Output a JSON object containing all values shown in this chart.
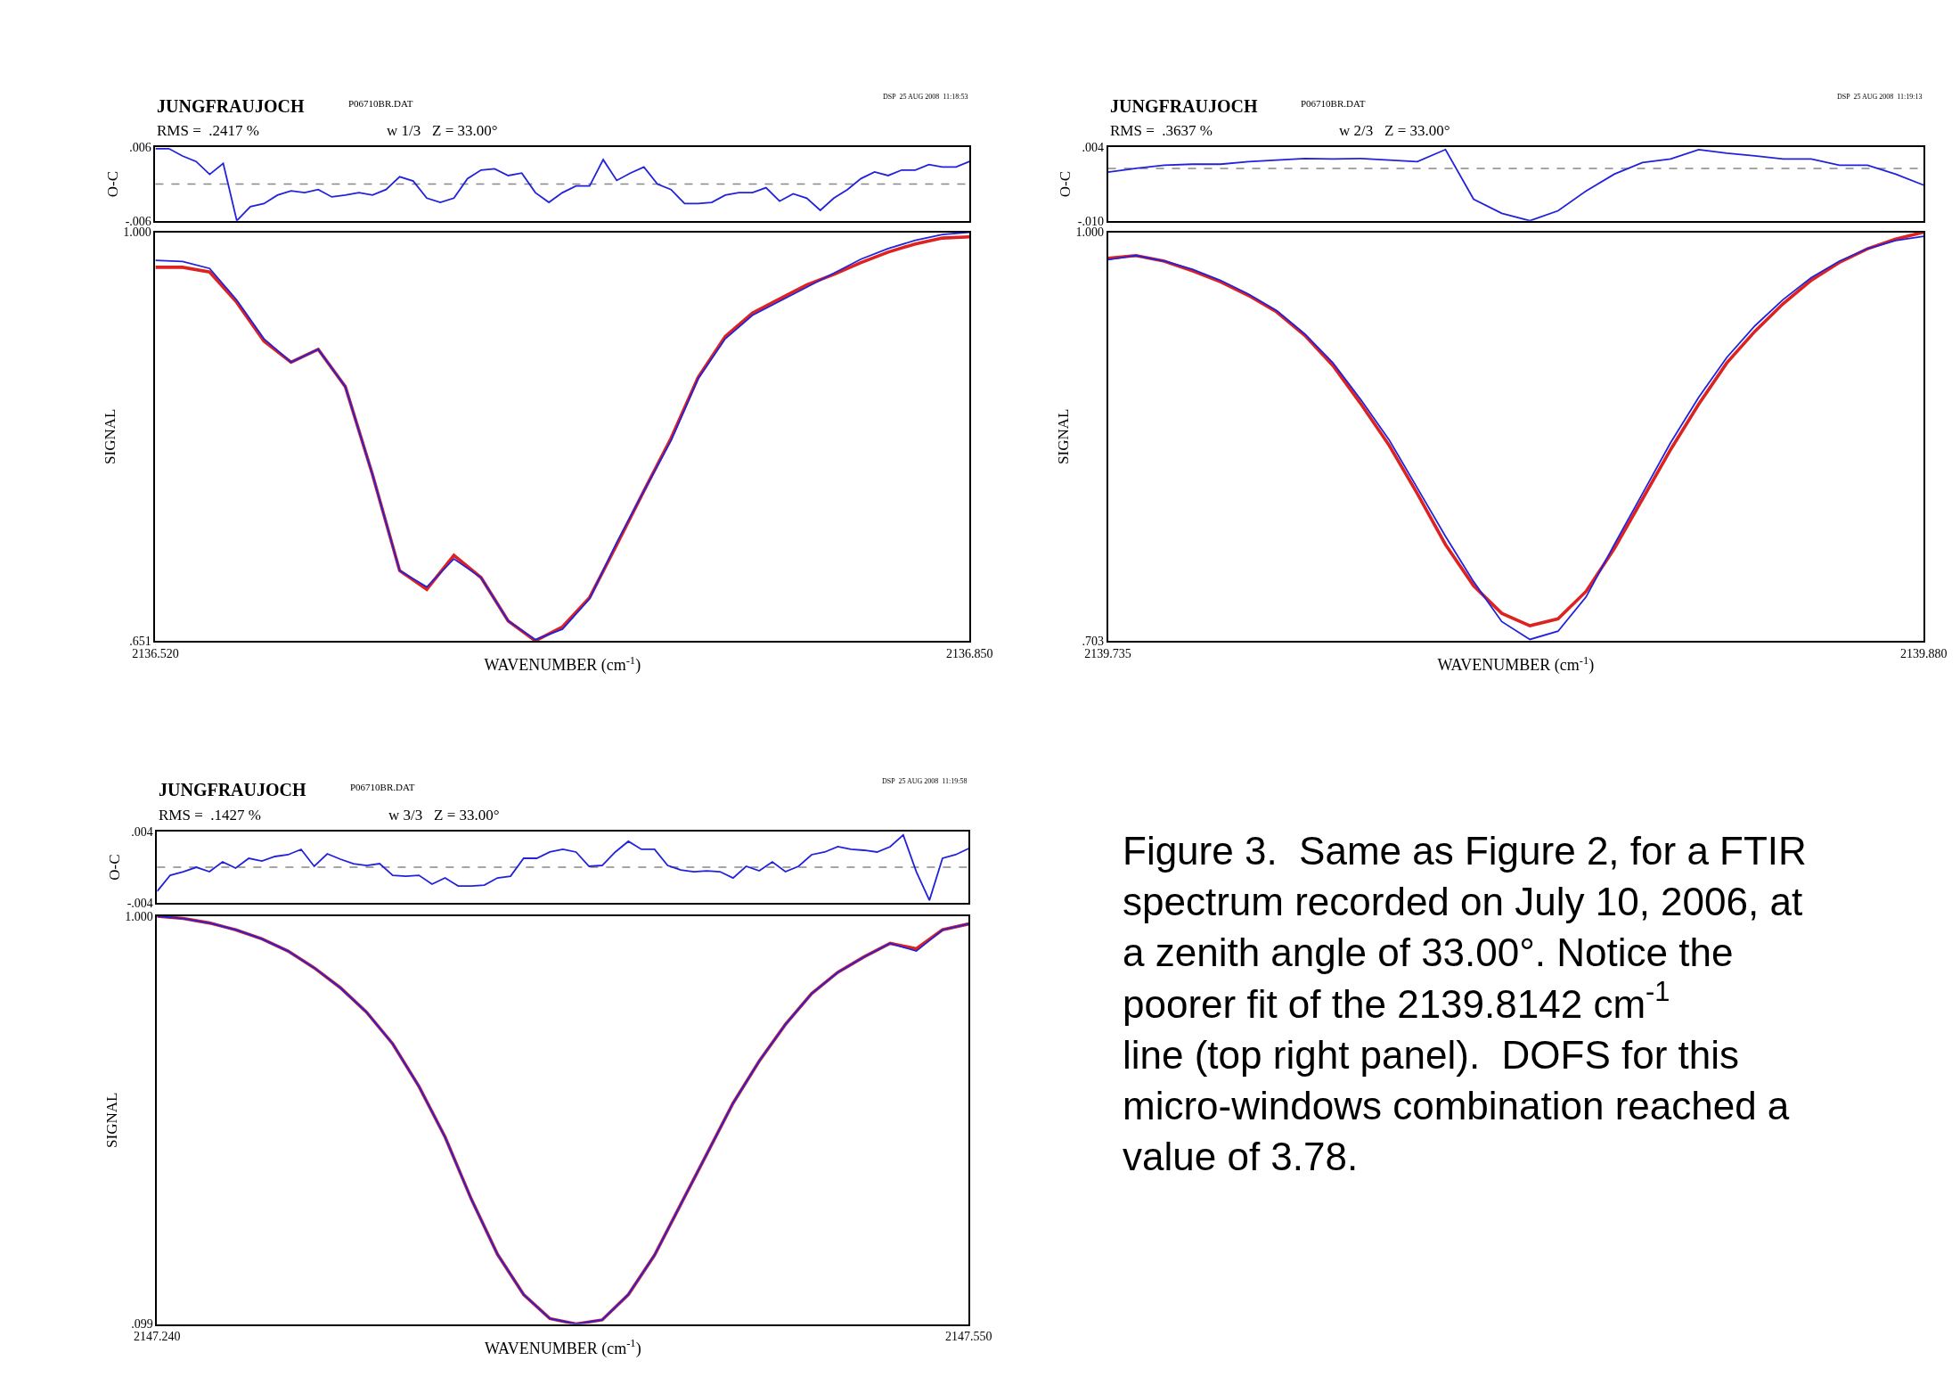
{
  "chart_data": [
    {
      "type": "line",
      "title": "JUNGFRAUJOCH",
      "annotations": [
        "P06710BR.DAT",
        "DSP  25 AUG 2008  11:18:53",
        "RMS =  .2417 %",
        "w 1/3   Z = 33.00°"
      ],
      "ylabel": "O-C",
      "tick_labels": "y",
      "xlim": [
        2136.52,
        2136.85
      ],
      "ylim": [
        -0.006,
        0.006
      ],
      "yticks": [
        {
          "value": 0.006,
          "label": ".006"
        },
        {
          "value": -0.006,
          "label": "-.006"
        }
      ],
      "ref_lines": [
        {
          "axis": "y",
          "value": 0,
          "color": "#888888",
          "line_style": "dashed"
        }
      ],
      "x": [
        2136.52,
        2136.5255,
        2136.531,
        2136.5365,
        2136.542,
        2136.5475,
        2136.553,
        2136.5585,
        2136.564,
        2136.5695,
        2136.575,
        2136.5805,
        2136.586,
        2136.5915,
        2136.597,
        2136.6025,
        2136.608,
        2136.6135,
        2136.619,
        2136.6245,
        2136.63,
        2136.6355,
        2136.641,
        2136.6465,
        2136.652,
        2136.6575,
        2136.663,
        2136.6685,
        2136.674,
        2136.6795,
        2136.685,
        2136.6905,
        2136.696,
        2136.7015,
        2136.707,
        2136.7125,
        2136.718,
        2136.7235,
        2136.729,
        2136.7345,
        2136.74,
        2136.7455,
        2136.751,
        2136.7565,
        2136.762,
        2136.7675,
        2136.773,
        2136.7785,
        2136.784,
        2136.7895,
        2136.795,
        2136.8005,
        2136.806,
        2136.8115,
        2136.817,
        2136.8225,
        2136.828,
        2136.8335,
        2136.839,
        2136.8445,
        2136.85
      ],
      "series": [
        {
          "color": "#2222dd",
          "values": [
            0.0058,
            0.0058,
            0.0046,
            0.0037,
            0.0016,
            0.0034,
            -0.006,
            -0.0037,
            -0.0032,
            -0.0018,
            -0.0011,
            -0.0014,
            -0.0009,
            -0.0021,
            -0.0018,
            -0.0014,
            -0.0018,
            -0.0009,
            0.0012,
            0.0005,
            -0.0023,
            -0.003,
            -0.0023,
            0.0009,
            0.0023,
            0.0025,
            0.0014,
            0.0018,
            -0.0014,
            -0.003,
            -0.0014,
            -0.0003,
            -0.0003,
            0.004,
            0.0006,
            0.0018,
            0.0028,
            0.0,
            -0.0009,
            -0.0032,
            -0.0032,
            -0.003,
            -0.0018,
            -0.0014,
            -0.0014,
            -0.0006,
            -0.0028,
            -0.0016,
            -0.0023,
            -0.0043,
            -0.0023,
            -0.0009,
            0.0009,
            0.002,
            0.0014,
            0.0023,
            0.0023,
            0.0032,
            0.0028,
            0.0028,
            0.0037
          ]
        }
      ]
    },
    {
      "type": "line",
      "xlabel": "WAVENUMBER (cm$^{-1}$)",
      "ylabel": "SIGNAL",
      "xlim": [
        2136.52,
        2136.85
      ],
      "ylim": [
        0.651,
        1.0
      ],
      "xticks": [
        {
          "value": 2136.52,
          "label": "2136.520"
        },
        {
          "value": 2136.85,
          "label": "2136.850"
        }
      ],
      "yticks": [
        {
          "value": 0.651,
          "label": ".651"
        },
        {
          "value": 1.0,
          "label": "1.000"
        }
      ],
      "x": [
        2136.52,
        2136.531,
        2136.542,
        2136.553,
        2136.564,
        2136.575,
        2136.586,
        2136.597,
        2136.608,
        2136.619,
        2136.63,
        2136.641,
        2136.652,
        2136.663,
        2136.674,
        2136.685,
        2136.696,
        2136.707,
        2136.718,
        2136.729,
        2136.74,
        2136.751,
        2136.762,
        2136.773,
        2136.784,
        2136.795,
        2136.806,
        2136.817,
        2136.828,
        2136.839,
        2136.85
      ],
      "series": [
        {
          "color": "#dd2222",
          "values": [
            0.97,
            0.97,
            0.966,
            0.94,
            0.907,
            0.889,
            0.9,
            0.868,
            0.793,
            0.711,
            0.695,
            0.724,
            0.705,
            0.668,
            0.651,
            0.663,
            0.688,
            0.733,
            0.779,
            0.824,
            0.876,
            0.911,
            0.931,
            0.943,
            0.955,
            0.964,
            0.974,
            0.983,
            0.99,
            0.995,
            0.996
          ]
        },
        {
          "color": "#2222dd",
          "values": [
            0.976,
            0.975,
            0.969,
            0.942,
            0.909,
            0.889,
            0.9,
            0.868,
            0.793,
            0.711,
            0.697,
            0.721,
            0.705,
            0.668,
            0.652,
            0.661,
            0.687,
            0.735,
            0.779,
            0.822,
            0.875,
            0.909,
            0.929,
            0.941,
            0.953,
            0.965,
            0.977,
            0.986,
            0.993,
            0.998,
            1.0
          ]
        }
      ]
    },
    {
      "type": "line",
      "title": "JUNGFRAUJOCH",
      "annotations": [
        "P06710BR.DAT",
        "DSP  25 AUG 2008  11:19:13",
        "RMS =  .3637 %",
        "w 2/3   Z = 33.00°"
      ],
      "ylabel": "O-C",
      "tick_labels": "y",
      "xlim": [
        2139.735,
        2139.88
      ],
      "ylim": [
        -0.01,
        0.004
      ],
      "yticks": [
        {
          "value": 0.004,
          "label": ".004"
        },
        {
          "value": -0.01,
          "label": "-.010"
        }
      ],
      "ref_lines": [
        {
          "axis": "y",
          "value": 0,
          "color": "#888888",
          "line_style": "dashed"
        }
      ],
      "x": [
        2139.735,
        2139.74,
        2139.745,
        2139.75,
        2139.755,
        2139.76,
        2139.765,
        2139.77,
        2139.775,
        2139.78,
        2139.785,
        2139.79,
        2139.795,
        2139.8,
        2139.805,
        2139.81,
        2139.815,
        2139.82,
        2139.825,
        2139.83,
        2139.835,
        2139.84,
        2139.845,
        2139.85,
        2139.855,
        2139.86,
        2139.865,
        2139.87,
        2139.875,
        2139.88
      ],
      "series": [
        {
          "color": "#2222dd",
          "values": [
            -0.0007,
            0.0,
            0.0006,
            0.0008,
            0.0008,
            0.0013,
            0.0016,
            0.0019,
            0.0018,
            0.0019,
            0.0016,
            0.0013,
            0.0036,
            -0.0059,
            -0.0086,
            -0.01,
            -0.0081,
            -0.0043,
            -0.0011,
            0.0011,
            0.0018,
            0.0036,
            0.0029,
            0.0024,
            0.0018,
            0.0018,
            0.0006,
            0.0006,
            -0.0011,
            -0.0032
          ]
        }
      ]
    },
    {
      "type": "line",
      "xlabel": "WAVENUMBER (cm$^{-1}$)",
      "ylabel": "SIGNAL",
      "xlim": [
        2139.735,
        2139.88
      ],
      "ylim": [
        0.703,
        1.0
      ],
      "xticks": [
        {
          "value": 2139.735,
          "label": "2139.735"
        },
        {
          "value": 2139.88,
          "label": "2139.880"
        }
      ],
      "yticks": [
        {
          "value": 0.703,
          "label": ".703"
        },
        {
          "value": 1.0,
          "label": "1.000"
        }
      ],
      "x": [
        2139.735,
        2139.74,
        2139.745,
        2139.75,
        2139.755,
        2139.76,
        2139.765,
        2139.77,
        2139.775,
        2139.78,
        2139.785,
        2139.79,
        2139.795,
        2139.8,
        2139.805,
        2139.81,
        2139.815,
        2139.82,
        2139.825,
        2139.83,
        2139.835,
        2139.84,
        2139.845,
        2139.85,
        2139.855,
        2139.86,
        2139.865,
        2139.87,
        2139.875,
        2139.88
      ],
      "series": [
        {
          "color": "#dd2222",
          "values": [
            0.981,
            0.983,
            0.979,
            0.972,
            0.964,
            0.954,
            0.942,
            0.925,
            0.903,
            0.875,
            0.845,
            0.81,
            0.773,
            0.743,
            0.723,
            0.714,
            0.719,
            0.739,
            0.77,
            0.806,
            0.842,
            0.875,
            0.905,
            0.928,
            0.948,
            0.965,
            0.978,
            0.988,
            0.995,
            1.0
          ]
        },
        {
          "color": "#2222dd",
          "values": [
            0.98,
            0.983,
            0.979,
            0.973,
            0.965,
            0.955,
            0.943,
            0.926,
            0.905,
            0.878,
            0.849,
            0.814,
            0.779,
            0.746,
            0.717,
            0.704,
            0.71,
            0.735,
            0.773,
            0.81,
            0.847,
            0.88,
            0.909,
            0.932,
            0.951,
            0.967,
            0.979,
            0.988,
            0.994,
            0.997
          ]
        }
      ]
    },
    {
      "type": "line",
      "title": "JUNGFRAUJOCH",
      "annotations": [
        "P06710BR.DAT",
        "DSP  25 AUG 2008  11:19:58",
        "RMS =  .1427 %",
        "w 3/3   Z = 33.00°"
      ],
      "ylabel": "O-C",
      "tick_labels": "y",
      "xlim": [
        2147.24,
        2147.55
      ],
      "ylim": [
        -0.004,
        0.004
      ],
      "yticks": [
        {
          "value": 0.004,
          "label": ".004"
        },
        {
          "value": -0.004,
          "label": "-.004"
        }
      ],
      "ref_lines": [
        {
          "axis": "y",
          "value": 0,
          "color": "#888888",
          "line_style": "dashed"
        }
      ],
      "x": [
        2147.24,
        2147.245,
        2147.25,
        2147.255,
        2147.26,
        2147.265,
        2147.27,
        2147.275,
        2147.28,
        2147.285,
        2147.29,
        2147.295,
        2147.3,
        2147.305,
        2147.31,
        2147.315,
        2147.32,
        2147.325,
        2147.33,
        2147.335,
        2147.34,
        2147.345,
        2147.35,
        2147.355,
        2147.36,
        2147.365,
        2147.37,
        2147.375,
        2147.38,
        2147.385,
        2147.39,
        2147.395,
        2147.4,
        2147.405,
        2147.41,
        2147.415,
        2147.42,
        2147.425,
        2147.43,
        2147.435,
        2147.44,
        2147.445,
        2147.45,
        2147.455,
        2147.46,
        2147.465,
        2147.47,
        2147.475,
        2147.48,
        2147.485,
        2147.49,
        2147.495,
        2147.5,
        2147.505,
        2147.51,
        2147.515,
        2147.52,
        2147.525,
        2147.53,
        2147.535,
        2147.54,
        2147.545,
        2147.55
      ],
      "series": [
        {
          "color": "#2222dd",
          "values": [
            -0.0027,
            -0.0009,
            -0.0005,
            0.0,
            -0.0005,
            0.0006,
            -0.0001,
            0.001,
            0.0007,
            0.0012,
            0.0014,
            0.002,
            0.0001,
            0.0015,
            0.0009,
            0.0004,
            0.0002,
            0.0004,
            -0.0009,
            -0.001,
            -0.0009,
            -0.0019,
            -0.0012,
            -0.0021,
            -0.0021,
            -0.002,
            -0.0012,
            -0.001,
            0.001,
            0.001,
            0.0017,
            0.002,
            0.0017,
            0.0001,
            0.0002,
            0.0017,
            0.0029,
            0.002,
            0.002,
            0.0002,
            -0.0003,
            -0.0005,
            -0.0004,
            -0.0005,
            -0.0012,
            0.0001,
            -0.0004,
            0.0006,
            -0.0005,
            0.0001,
            0.0014,
            0.0017,
            0.0023,
            0.002,
            0.0019,
            0.0017,
            0.0023,
            0.0036,
            -0.0005,
            -0.0037,
            0.001,
            0.0014,
            0.0021
          ]
        }
      ]
    },
    {
      "type": "line",
      "xlabel": "WAVENUMBER (cm$^{-1}$)",
      "ylabel": "SIGNAL",
      "xlim": [
        2147.24,
        2147.55
      ],
      "ylim": [
        0.099,
        1.0
      ],
      "xticks": [
        {
          "value": 2147.24,
          "label": "2147.240"
        },
        {
          "value": 2147.55,
          "label": "2147.550"
        }
      ],
      "yticks": [
        {
          "value": 0.099,
          "label": ".099"
        },
        {
          "value": 1.0,
          "label": "1.000"
        }
      ],
      "x": [
        2147.24,
        2147.25,
        2147.26,
        2147.27,
        2147.28,
        2147.29,
        2147.3,
        2147.31,
        2147.32,
        2147.33,
        2147.34,
        2147.35,
        2147.36,
        2147.37,
        2147.38,
        2147.39,
        2147.4,
        2147.41,
        2147.42,
        2147.43,
        2147.44,
        2147.45,
        2147.46,
        2147.47,
        2147.48,
        2147.49,
        2147.5,
        2147.51,
        2147.52,
        2147.53,
        2147.54,
        2147.55
      ],
      "series": [
        {
          "color": "#dd2222",
          "values": [
            1.0,
            0.995,
            0.985,
            0.97,
            0.95,
            0.923,
            0.886,
            0.842,
            0.788,
            0.718,
            0.624,
            0.512,
            0.375,
            0.253,
            0.164,
            0.111,
            0.099,
            0.108,
            0.164,
            0.251,
            0.363,
            0.475,
            0.587,
            0.68,
            0.761,
            0.829,
            0.876,
            0.91,
            0.94,
            0.928,
            0.97,
            0.983
          ]
        },
        {
          "color": "#2222dd",
          "values": [
            1.0,
            0.995,
            0.985,
            0.97,
            0.95,
            0.923,
            0.886,
            0.842,
            0.788,
            0.718,
            0.624,
            0.512,
            0.375,
            0.253,
            0.164,
            0.111,
            0.099,
            0.108,
            0.164,
            0.251,
            0.363,
            0.475,
            0.587,
            0.68,
            0.761,
            0.829,
            0.876,
            0.91,
            0.94,
            0.923,
            0.97,
            0.983
          ]
        }
      ]
    },
    {
      "type": "other",
      "annotations": [
        "Figure 3.  Same as Figure 2, for a FTIR spectrum recorded on July 10, 2006, at a zenith angle of 33.00°. Notice the poorer fit of the 2139.8142 cm$^{-1}$ line (top right panel).  DOFS for this micro-windows combination reached a value of 3.78."
      ]
    }
  ]
}
